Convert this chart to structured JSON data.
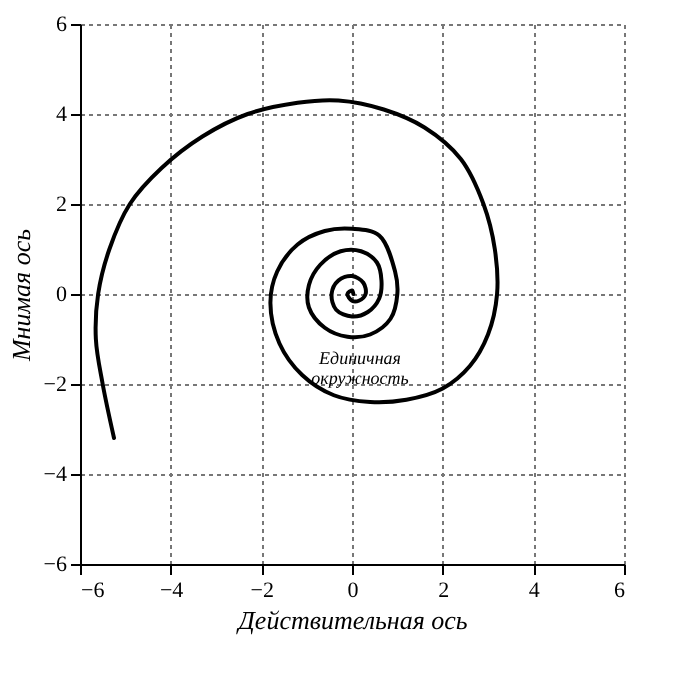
{
  "chart_data": {
    "type": "line",
    "xlabel": "Действительная ось",
    "ylabel": "Мнимая ось",
    "xlim": [
      -6,
      6
    ],
    "ylim": [
      -6,
      6
    ],
    "xticks": [
      -6,
      -4,
      -2,
      0,
      2,
      4,
      6
    ],
    "yticks": [
      -6,
      -4,
      -2,
      0,
      2,
      4,
      6
    ],
    "grid": true,
    "marker": "none",
    "line_style": "solid",
    "annotations": [
      "Единичная окружность"
    ],
    "series": [
      {
        "color": "#000000",
        "x": [
          -5.25,
          -5.5,
          -5.65,
          -5.6,
          -5.35,
          -4.9,
          -4.2,
          -3.3,
          -2.3,
          -1.2,
          -0.3,
          0.7,
          1.6,
          2.4,
          2.9,
          3.15,
          3.2,
          3.0,
          2.6,
          2.0,
          1.2,
          0.4,
          -0.4,
          -1.1,
          -1.6,
          -1.8,
          -1.65,
          -1.2,
          -0.6,
          0,
          0.6,
          0.95,
          1.0,
          0.85,
          0.4,
          -0.1,
          -0.6,
          -0.95,
          -0.95,
          -0.7,
          -0.25,
          0.2,
          0.55,
          0.65,
          0.6,
          0.35,
          0,
          -0.35,
          -0.45,
          -0.3,
          0,
          0.25,
          0.3,
          0.15,
          0,
          -0.1,
          0,
          0.03
        ],
        "values": [
          -3.2,
          -2.0,
          -1.0,
          0,
          1.0,
          2.0,
          2.8,
          3.5,
          4.0,
          4.25,
          4.3,
          4.1,
          3.7,
          3.0,
          2.0,
          1.0,
          0,
          -0.9,
          -1.6,
          -2.1,
          -2.35,
          -2.4,
          -2.25,
          -1.8,
          -1.1,
          -0.2,
          0.5,
          1.1,
          1.4,
          1.45,
          1.3,
          0.5,
          0,
          -0.55,
          -0.9,
          -0.95,
          -0.75,
          -0.3,
          0.2,
          0.65,
          0.95,
          0.95,
          0.7,
          0.3,
          -0.1,
          -0.4,
          -0.5,
          -0.35,
          0,
          0.3,
          0.4,
          0.25,
          0,
          -0.15,
          -0.15,
          0,
          0.08,
          0
        ]
      }
    ]
  }
}
